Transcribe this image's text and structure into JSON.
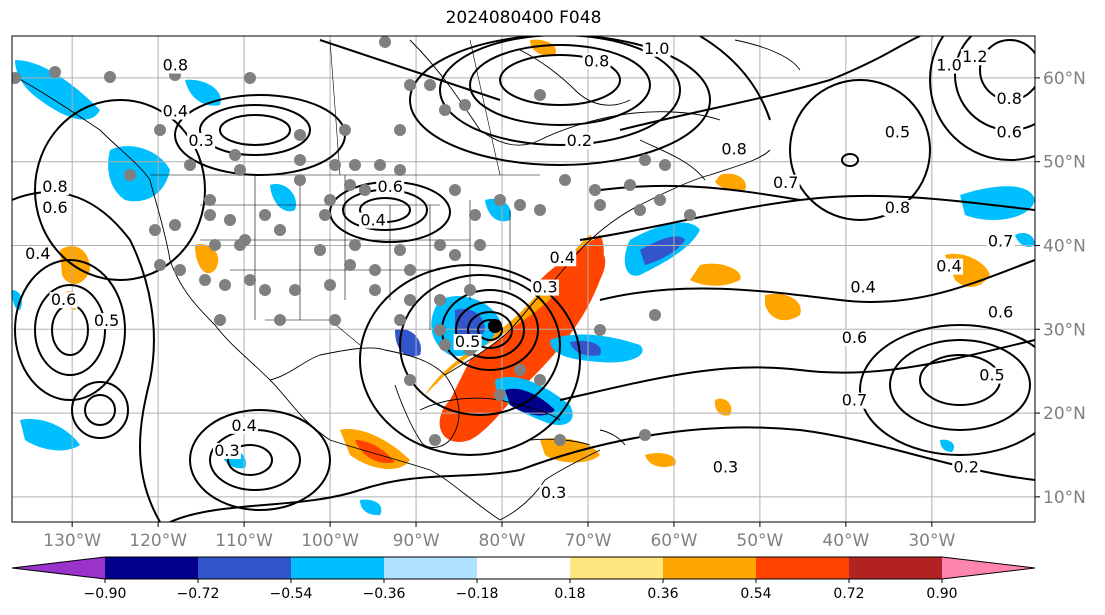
{
  "title": "2024080400 F048",
  "map": {
    "projection": "equirectangular",
    "lon_range": [
      -137,
      -18
    ],
    "lat_range": [
      7,
      65
    ],
    "lon_ticks": [
      {
        "lon": -130,
        "label": "130°W"
      },
      {
        "lon": -120,
        "label": "120°W"
      },
      {
        "lon": -110,
        "label": "110°W"
      },
      {
        "lon": -100,
        "label": "100°W"
      },
      {
        "lon": -90,
        "label": "90°W"
      },
      {
        "lon": -80,
        "label": "80°W"
      },
      {
        "lon": -70,
        "label": "70°W"
      },
      {
        "lon": -60,
        "label": "60°W"
      },
      {
        "lon": -50,
        "label": "50°W"
      },
      {
        "lon": -40,
        "label": "40°W"
      },
      {
        "lon": -30,
        "label": "30°W"
      }
    ],
    "lat_ticks": [
      {
        "lat": 60,
        "label": "60°N"
      },
      {
        "lat": 50,
        "label": "50°N"
      },
      {
        "lat": 40,
        "label": "40°N"
      },
      {
        "lat": 30,
        "label": "30°N"
      },
      {
        "lat": 20,
        "label": "20°N"
      },
      {
        "lat": 10,
        "label": "10°N"
      }
    ],
    "contour_labels": [
      {
        "text": "0.8",
        "lon": -69,
        "lat": 61.5
      },
      {
        "text": "1.0",
        "lon": -62,
        "lat": 63
      },
      {
        "text": "1.2",
        "lon": -25,
        "lat": 62
      },
      {
        "text": "1.0",
        "lon": -28,
        "lat": 61
      },
      {
        "text": "0.8",
        "lon": -21,
        "lat": 57
      },
      {
        "text": "0.6",
        "lon": -21,
        "lat": 53
      },
      {
        "text": "0.4",
        "lon": -118,
        "lat": 55.5
      },
      {
        "text": "0.3",
        "lon": -115,
        "lat": 52
      },
      {
        "text": "0.2",
        "lon": -71,
        "lat": 52
      },
      {
        "text": "0.8",
        "lon": -53,
        "lat": 51
      },
      {
        "text": "0.7",
        "lon": -47,
        "lat": 47
      },
      {
        "text": "0.5",
        "lon": -34,
        "lat": 53
      },
      {
        "text": "0.8",
        "lon": -118,
        "lat": 61
      },
      {
        "text": "0.8",
        "lon": -132,
        "lat": 46.5
      },
      {
        "text": "0.6",
        "lon": -132,
        "lat": 44
      },
      {
        "text": "0.6",
        "lon": -93,
        "lat": 46.5
      },
      {
        "text": "0.4",
        "lon": -95,
        "lat": 42.5
      },
      {
        "text": "0.4",
        "lon": -73,
        "lat": 38
      },
      {
        "text": "0.3",
        "lon": -75,
        "lat": 34.5
      },
      {
        "text": "0.6",
        "lon": -131,
        "lat": 33
      },
      {
        "text": "0.5",
        "lon": -126,
        "lat": 30.5
      },
      {
        "text": "0.4",
        "lon": -134,
        "lat": 38.5
      },
      {
        "text": "0.4",
        "lon": -110,
        "lat": 18
      },
      {
        "text": "0.3",
        "lon": -112,
        "lat": 15
      },
      {
        "text": "0.3",
        "lon": -74,
        "lat": 10
      },
      {
        "text": "0.3",
        "lon": -54,
        "lat": 13
      },
      {
        "text": "0.2",
        "lon": -26,
        "lat": 13
      },
      {
        "text": "0.4",
        "lon": -38,
        "lat": 34.5
      },
      {
        "text": "0.4",
        "lon": -28,
        "lat": 37
      },
      {
        "text": "0.6",
        "lon": -39,
        "lat": 28.5
      },
      {
        "text": "0.7",
        "lon": -39,
        "lat": 21
      },
      {
        "text": "0.5",
        "lon": -23,
        "lat": 24
      },
      {
        "text": "0.6",
        "lon": -22,
        "lat": 31.5
      },
      {
        "text": "0.7",
        "lon": -22,
        "lat": 40
      },
      {
        "text": "0.8",
        "lon": -34,
        "lat": 44
      },
      {
        "text": "0.5",
        "lon": -84,
        "lat": 28
      }
    ]
  },
  "colorbar": {
    "ticks": [
      "−0.90",
      "−0.72",
      "−0.54",
      "−0.36",
      "−0.18",
      "0.18",
      "0.36",
      "0.54",
      "0.72",
      "0.90"
    ],
    "colors": [
      "#9933cc",
      "#00008b",
      "#3355cc",
      "#00bfff",
      "#b0e0ff",
      "#ffffff",
      "#ffe680",
      "#ffa500",
      "#ff4500",
      "#b22222",
      "#ff85b0"
    ]
  }
}
